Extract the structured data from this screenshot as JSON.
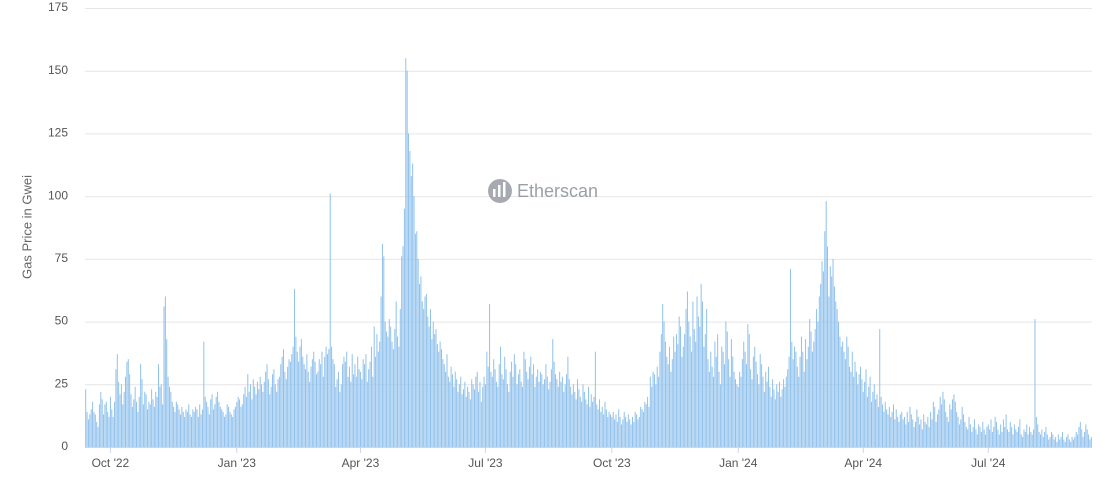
{
  "chart_data": {
    "type": "bar",
    "y_label": "Gas Price in Gwei",
    "watermark": "Etherscan",
    "color": "#8fc1ec",
    "ylim": [
      0,
      175
    ],
    "yticks": [
      0,
      25,
      50,
      75,
      100,
      125,
      150,
      175
    ],
    "grid": true,
    "categories": [
      null,
      null,
      null,
      null,
      null,
      null,
      null,
      null,
      null,
      null,
      null,
      null,
      null,
      null,
      null,
      null,
      null,
      null,
      "Oct '22",
      null,
      null,
      null,
      null,
      null,
      null,
      null,
      null,
      null,
      null,
      null,
      null,
      null,
      null,
      null,
      null,
      null,
      null,
      null,
      null,
      null,
      null,
      null,
      null,
      null,
      null,
      null,
      null,
      null,
      null,
      null,
      null,
      null,
      null,
      null,
      null,
      null,
      null,
      null,
      null,
      null,
      null,
      null,
      null,
      null,
      null,
      null,
      null,
      null,
      null,
      null,
      null,
      null,
      null,
      null,
      null,
      null,
      null,
      null,
      null,
      null,
      null,
      null,
      null,
      null,
      null,
      null,
      null,
      null,
      null,
      null,
      null,
      null,
      null,
      null,
      null,
      null,
      null,
      null,
      null,
      null,
      null,
      null,
      null,
      null,
      null,
      null,
      null,
      null,
      null,
      null,
      "Jan '23",
      null,
      null,
      null,
      null,
      null,
      null,
      null,
      null,
      null,
      null,
      null,
      null,
      null,
      null,
      null,
      null,
      null,
      null,
      null,
      null,
      null,
      null,
      null,
      null,
      null,
      null,
      null,
      null,
      null,
      null,
      null,
      null,
      null,
      null,
      null,
      null,
      null,
      null,
      null,
      null,
      null,
      null,
      null,
      null,
      null,
      null,
      null,
      null,
      null,
      null,
      null,
      null,
      null,
      null,
      null,
      null,
      null,
      null,
      null,
      null,
      null,
      null,
      null,
      null,
      null,
      null,
      null,
      null,
      null,
      null,
      null,
      null,
      null,
      null,
      null,
      null,
      null,
      null,
      null,
      null,
      null,
      null,
      null,
      null,
      null,
      null,
      null,
      null,
      null,
      "Apr '23",
      null,
      null,
      null,
      null,
      null,
      null,
      null,
      null,
      null,
      null,
      null,
      null,
      null,
      null,
      null,
      null,
      null,
      null,
      null,
      null,
      null,
      null,
      null,
      null,
      null,
      null,
      null,
      null,
      null,
      null,
      null,
      null,
      null,
      null,
      null,
      null,
      null,
      null,
      null,
      null,
      null,
      null,
      null,
      null,
      null,
      null,
      null,
      null,
      null,
      null,
      null,
      null,
      null,
      null,
      null,
      null,
      null,
      null,
      null,
      null,
      null,
      null,
      null,
      null,
      null,
      null,
      null,
      null,
      null,
      null,
      null,
      null,
      null,
      null,
      null,
      null,
      null,
      null,
      null,
      null,
      null,
      null,
      null,
      null,
      null,
      null,
      null,
      null,
      null,
      null,
      "Jul '23",
      null,
      null,
      null,
      null,
      null,
      null,
      null,
      null,
      null,
      null,
      null,
      null,
      null,
      null,
      null,
      null,
      null,
      null,
      null,
      null,
      null,
      null,
      null,
      null,
      null,
      null,
      null,
      null,
      null,
      null,
      null,
      null,
      null,
      null,
      null,
      null,
      null,
      null,
      null,
      null,
      null,
      null,
      null,
      null,
      null,
      null,
      null,
      null,
      null,
      null,
      null,
      null,
      null,
      null,
      null,
      null,
      null,
      null,
      null,
      null,
      null,
      null,
      null,
      null,
      null,
      null,
      null,
      null,
      null,
      null,
      null,
      null,
      null,
      null,
      null,
      null,
      null,
      null,
      null,
      null,
      null,
      null,
      null,
      null,
      null,
      null,
      null,
      null,
      null,
      null,
      null,
      "Oct '23",
      null,
      null,
      null,
      null,
      null,
      null,
      null,
      null,
      null,
      null,
      null,
      null,
      null,
      null,
      null,
      null,
      null,
      null,
      null,
      null,
      null,
      null,
      null,
      null,
      null,
      null,
      null,
      null,
      null,
      null,
      null,
      null,
      null,
      null,
      null,
      null,
      null,
      null,
      null,
      null,
      null,
      null,
      null,
      null,
      null,
      null,
      null,
      null,
      null,
      null,
      null,
      null,
      null,
      null,
      null,
      null,
      null,
      null,
      null,
      null,
      null,
      null,
      null,
      null,
      null,
      null,
      null,
      null,
      null,
      null,
      null,
      null,
      null,
      null,
      null,
      null,
      null,
      null,
      null,
      null,
      null,
      null,
      null,
      null,
      null,
      null,
      null,
      null,
      null,
      null,
      null,
      "Jan '24",
      null,
      null,
      null,
      null,
      null,
      null,
      null,
      null,
      null,
      null,
      null,
      null,
      null,
      null,
      null,
      null,
      null,
      null,
      null,
      null,
      null,
      null,
      null,
      null,
      null,
      null,
      null,
      null,
      null,
      null,
      null,
      null,
      null,
      null,
      null,
      null,
      null,
      null,
      null,
      null,
      null,
      null,
      null,
      null,
      null,
      null,
      null,
      null,
      null,
      null,
      null,
      null,
      null,
      null,
      null,
      null,
      null,
      null,
      null,
      null,
      null,
      null,
      null,
      null,
      null,
      null,
      null,
      null,
      null,
      null,
      null,
      null,
      null,
      null,
      null,
      null,
      null,
      null,
      null,
      null,
      null,
      null,
      null,
      null,
      null,
      null,
      null,
      null,
      null,
      null,
      "Apr '24",
      null,
      null,
      null,
      null,
      null,
      null,
      null,
      null,
      null,
      null,
      null,
      null,
      null,
      null,
      null,
      null,
      null,
      null,
      null,
      null,
      null,
      null,
      null,
      null,
      null,
      null,
      null,
      null,
      null,
      null,
      null,
      null,
      null,
      null,
      null,
      null,
      null,
      null,
      null,
      null,
      null,
      null,
      null,
      null,
      null,
      null,
      null,
      null,
      null,
      null,
      null,
      null,
      null,
      null,
      null,
      null,
      null,
      null,
      null,
      null,
      null,
      null,
      null,
      null,
      null,
      null,
      null,
      null,
      null,
      null,
      null,
      null,
      null,
      null,
      null,
      null,
      null,
      null,
      null,
      null,
      null,
      null,
      null,
      null,
      null,
      null,
      null,
      null,
      null,
      null,
      "Jul '24",
      null,
      null,
      null,
      null,
      null,
      null,
      null,
      null,
      null,
      null,
      null,
      null,
      null,
      null,
      null,
      null,
      null,
      null,
      null,
      null,
      null,
      null,
      null,
      null,
      null,
      null,
      null,
      null,
      null,
      null,
      null,
      null,
      null,
      null,
      null,
      null,
      null,
      null,
      null,
      null,
      null,
      null,
      null,
      null,
      null,
      null,
      null,
      null,
      null,
      null,
      null,
      null,
      null,
      null,
      null,
      null,
      null,
      null,
      null,
      null,
      null,
      null,
      null,
      null,
      null,
      null,
      null,
      null,
      null,
      null,
      null,
      null,
      null,
      null,
      null
    ],
    "values": [
      23,
      14,
      11,
      13,
      15,
      18,
      14,
      13,
      10,
      8,
      17,
      22,
      19,
      13,
      17,
      18,
      14,
      12,
      20,
      15,
      12,
      18,
      31,
      37,
      26,
      21,
      25,
      17,
      22,
      28,
      34,
      35,
      29,
      21,
      16,
      19,
      24,
      18,
      14,
      20,
      33,
      27,
      17,
      22,
      21,
      15,
      18,
      17,
      23,
      19,
      16,
      22,
      20,
      33,
      24,
      25,
      17,
      56,
      60,
      43,
      28,
      24,
      22,
      18,
      16,
      14,
      18,
      17,
      15,
      13,
      16,
      14,
      12,
      15,
      14,
      17,
      13,
      12,
      15,
      14,
      16,
      15,
      12,
      17,
      13,
      15,
      42,
      20,
      18,
      16,
      13,
      19,
      21,
      15,
      17,
      20,
      22,
      18,
      16,
      15,
      14,
      12,
      13,
      17,
      16,
      14,
      13,
      12,
      15,
      16,
      18,
      20,
      19,
      16,
      17,
      21,
      24,
      20,
      29,
      22,
      25,
      19,
      27,
      24,
      21,
      26,
      23,
      28,
      25,
      22,
      26,
      30,
      33,
      27,
      21,
      24,
      29,
      31,
      25,
      22,
      27,
      28,
      33,
      36,
      39,
      30,
      27,
      32,
      35,
      34,
      37,
      40,
      63,
      44,
      38,
      34,
      40,
      43,
      36,
      33,
      31,
      37,
      30,
      26,
      32,
      35,
      38,
      34,
      29,
      30,
      35,
      33,
      38,
      28,
      36,
      40,
      37,
      39,
      101,
      40,
      35,
      33,
      24,
      27,
      30,
      22,
      25,
      33,
      36,
      34,
      38,
      28,
      32,
      26,
      37,
      29,
      33,
      28,
      36,
      31,
      30,
      27,
      35,
      33,
      37,
      26,
      31,
      34,
      40,
      28,
      48,
      36,
      45,
      38,
      42,
      60,
      81,
      76,
      50,
      46,
      44,
      51,
      48,
      42,
      39,
      47,
      58,
      44,
      40,
      55,
      76,
      80,
      95,
      155,
      150,
      125,
      118,
      108,
      113,
      100,
      85,
      86,
      75,
      65,
      68,
      58,
      55,
      60,
      61,
      52,
      48,
      55,
      43,
      50,
      45,
      47,
      41,
      38,
      42,
      39,
      35,
      33,
      30,
      37,
      28,
      26,
      32,
      29,
      24,
      30,
      27,
      22,
      25,
      28,
      21,
      23,
      26,
      20,
      24,
      22,
      19,
      27,
      25,
      23,
      28,
      30,
      22,
      26,
      18,
      24,
      28,
      25,
      38,
      32,
      57,
      30,
      28,
      35,
      31,
      26,
      24,
      33,
      40,
      29,
      27,
      36,
      31,
      25,
      22,
      30,
      34,
      28,
      37,
      33,
      25,
      29,
      31,
      26,
      24,
      38,
      35,
      30,
      27,
      32,
      36,
      29,
      33,
      24,
      28,
      31,
      26,
      30,
      29,
      25,
      27,
      33,
      28,
      23,
      26,
      31,
      43,
      34,
      29,
      27,
      24,
      30,
      26,
      28,
      22,
      25,
      29,
      36,
      27,
      24,
      21,
      25,
      22,
      19,
      27,
      23,
      20,
      18,
      25,
      22,
      19,
      17,
      24,
      16,
      21,
      18,
      20,
      38,
      17,
      15,
      19,
      14,
      16,
      13,
      18,
      15,
      12,
      14,
      13,
      12,
      14,
      11,
      13,
      10,
      15,
      12,
      9,
      11,
      14,
      12,
      10,
      13,
      11,
      9,
      12,
      10,
      14,
      13,
      11,
      12,
      16,
      15,
      14,
      18,
      17,
      20,
      16,
      28,
      24,
      30,
      29,
      25,
      32,
      28,
      38,
      45,
      57,
      50,
      42,
      36,
      33,
      40,
      30,
      35,
      44,
      38,
      45,
      41,
      52,
      48,
      36,
      40,
      45,
      55,
      62,
      50,
      44,
      38,
      58,
      47,
      42,
      60,
      52,
      48,
      65,
      58,
      40,
      45,
      55,
      35,
      30,
      38,
      32,
      28,
      42,
      36,
      45,
      30,
      25,
      40,
      38,
      33,
      50,
      46,
      35,
      28,
      43,
      36,
      30,
      27,
      25,
      24,
      30,
      28,
      35,
      42,
      38,
      33,
      49,
      45,
      31,
      27,
      36,
      40,
      34,
      29,
      25,
      37,
      33,
      28,
      22,
      30,
      26,
      32,
      24,
      20,
      27,
      23,
      19,
      25,
      22,
      26,
      20,
      23,
      27,
      24,
      28,
      31,
      36,
      71,
      42,
      35,
      40,
      38,
      32,
      28,
      36,
      44,
      38,
      30,
      43,
      35,
      40,
      51,
      46,
      38,
      42,
      47,
      55,
      50,
      60,
      65,
      74,
      70,
      86,
      98,
      80,
      60,
      72,
      68,
      75,
      64,
      58,
      55,
      50,
      44,
      40,
      42,
      38,
      35,
      44,
      40,
      32,
      30,
      38,
      28,
      34,
      30,
      25,
      29,
      32,
      27,
      22,
      26,
      31,
      20,
      24,
      28,
      18,
      22,
      25,
      19,
      21,
      16,
      47,
      20,
      17,
      14,
      18,
      15,
      13,
      16,
      12,
      14,
      17,
      11,
      15,
      12,
      10,
      13,
      14,
      11,
      12,
      9,
      14,
      10,
      16,
      13,
      11,
      8,
      10,
      15,
      12,
      9,
      11,
      7,
      13,
      10,
      9,
      12,
      8,
      14,
      11,
      18,
      16,
      10,
      13,
      15,
      20,
      17,
      22,
      19,
      14,
      12,
      10,
      17,
      15,
      19,
      21,
      18,
      14,
      12,
      9,
      11,
      16,
      13,
      10,
      8,
      7,
      12,
      9,
      6,
      8,
      11,
      7,
      5,
      9,
      8,
      6,
      10,
      7,
      5,
      8,
      9,
      7,
      11,
      6,
      8,
      12,
      10,
      7,
      5,
      9,
      6,
      11,
      8,
      13,
      7,
      6,
      10,
      8,
      5,
      9,
      7,
      6,
      8,
      11,
      5,
      4,
      7,
      6,
      9,
      5,
      8,
      6,
      5,
      7,
      51,
      12,
      9,
      6,
      5,
      7,
      4,
      6,
      8,
      5,
      3,
      4,
      6,
      5,
      3,
      4,
      2,
      5,
      3,
      4,
      6,
      3,
      2,
      4,
      5,
      3,
      2,
      4,
      3,
      4,
      6,
      5,
      8,
      10,
      7,
      4,
      6,
      9,
      7,
      5,
      3,
      4
    ]
  }
}
